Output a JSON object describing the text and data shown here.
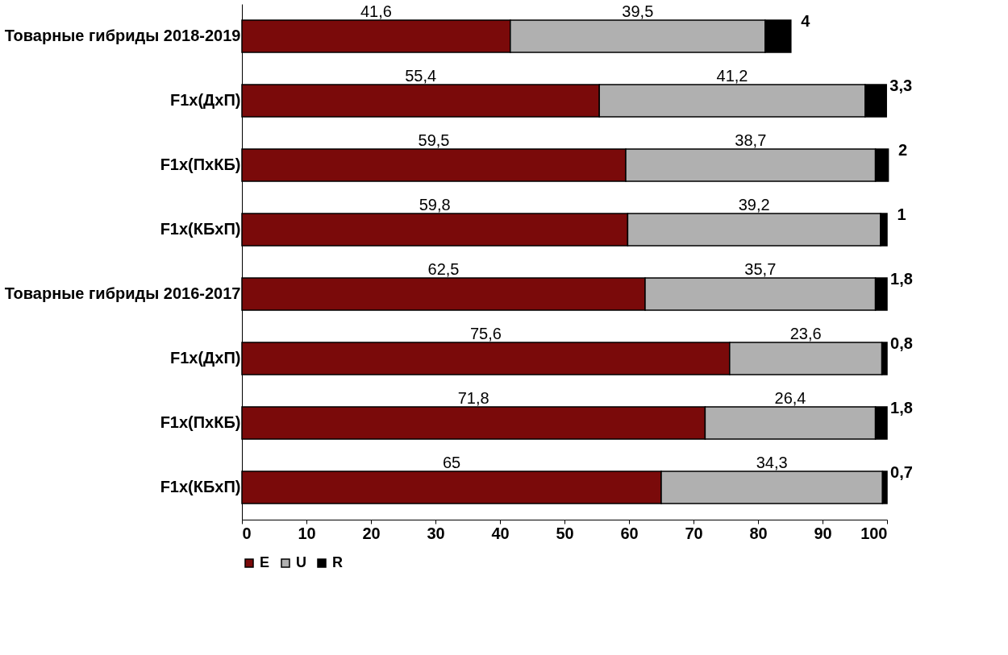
{
  "chart_data": {
    "type": "bar",
    "orientation": "horizontal",
    "stacked": true,
    "categories": [
      "Товарные гибриды 2018-2019",
      "F1x(ДхП)",
      "F1x(ПхКБ)",
      "F1x(КБхП)",
      "Товарные гибриды 2016-2017",
      "F1x(ДхП)",
      "F1x(ПхКБ)",
      "F1x(КБхП)"
    ],
    "series": [
      {
        "name": "E",
        "color": "#7a0a0a",
        "values": [
          41.6,
          55.4,
          59.5,
          59.8,
          62.5,
          75.6,
          71.8,
          65
        ],
        "value_labels": [
          "41,6",
          "55,4",
          "59,5",
          "59,8",
          "62,5",
          "75,6",
          "71,8",
          "65"
        ]
      },
      {
        "name": "U",
        "color": "#b0b0b0",
        "values": [
          39.5,
          41.2,
          38.7,
          39.2,
          35.7,
          23.6,
          26.4,
          34.3
        ],
        "value_labels": [
          "39,5",
          "41,2",
          "38,7",
          "39,2",
          "35,7",
          "23,6",
          "26,4",
          "34,3"
        ]
      },
      {
        "name": "R",
        "color": "#000000",
        "values": [
          4,
          3.3,
          2,
          1,
          1.8,
          0.8,
          1.8,
          0.7
        ],
        "value_labels": [
          "4",
          "3,3",
          "2",
          "1",
          "1,8",
          "0,8",
          "1,8",
          "0,7"
        ]
      }
    ],
    "xlim": [
      0,
      100
    ],
    "xticks": [
      0,
      10,
      20,
      30,
      40,
      50,
      60,
      70,
      80,
      90,
      100
    ],
    "legend": "bottom",
    "grid": false
  }
}
